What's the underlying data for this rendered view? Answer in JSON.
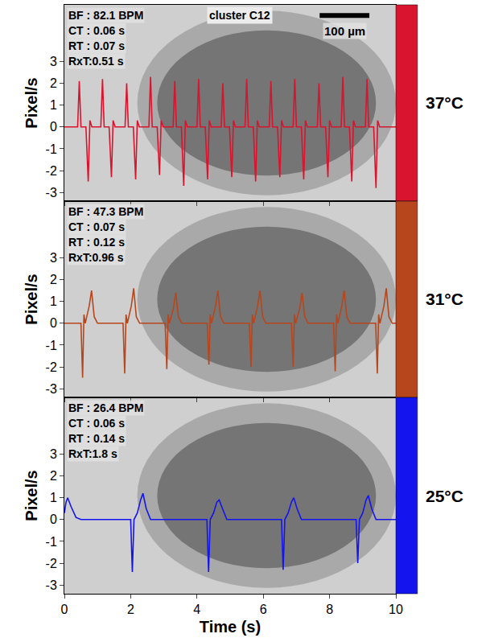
{
  "chart_data": {
    "type": "line",
    "xlabel": "Time (s)",
    "ylabel": "Pixel/s",
    "xlim": [
      0,
      10
    ],
    "xticks": [
      0,
      2,
      4,
      6,
      8,
      10
    ],
    "ylim": [
      -3.4,
      5.6
    ],
    "yticks": [
      -3,
      -2,
      -1,
      0,
      1,
      2,
      3
    ],
    "grid": false,
    "annotations": [
      "cluster C12",
      "100 µm"
    ],
    "series": [
      {
        "name": "37°C",
        "color": "#d9142e",
        "annotations": [
          "BF : 82.1 BPM",
          "CT : 0.06 s",
          "RT : 0.07 s",
          "RxT:0.51 s"
        ],
        "x": [
          0,
          0.4,
          0.45,
          0.5,
          0.65,
          0.72,
          0.77,
          0.83,
          1.1,
          1.15,
          1.2,
          1.35,
          1.42,
          1.47,
          1.53,
          1.83,
          1.88,
          1.93,
          2.08,
          2.15,
          2.2,
          2.26,
          2.55,
          2.6,
          2.65,
          2.8,
          2.87,
          2.92,
          2.98,
          3.28,
          3.33,
          3.38,
          3.53,
          3.6,
          3.65,
          3.71,
          4.0,
          4.05,
          4.1,
          4.25,
          4.32,
          4.37,
          4.43,
          4.73,
          4.78,
          4.83,
          4.98,
          5.05,
          5.1,
          5.16,
          5.45,
          5.5,
          5.55,
          5.7,
          5.77,
          5.82,
          5.88,
          6.18,
          6.23,
          6.28,
          6.43,
          6.5,
          6.55,
          6.61,
          6.9,
          6.95,
          7.0,
          7.15,
          7.22,
          7.27,
          7.33,
          7.63,
          7.68,
          7.73,
          7.88,
          7.95,
          8.0,
          8.06,
          8.35,
          8.4,
          8.45,
          8.6,
          8.67,
          8.72,
          8.78,
          9.08,
          9.13,
          9.18,
          9.33,
          9.4,
          9.45,
          9.51,
          10
        ],
        "values": [
          0,
          0,
          2.1,
          0,
          0,
          -2.5,
          0.3,
          0,
          0,
          2.2,
          0,
          0,
          -2.3,
          0.3,
          0,
          0,
          2.0,
          0,
          0,
          -2.4,
          0.3,
          0,
          0,
          2.3,
          0,
          0,
          -2.2,
          0.3,
          0,
          0,
          2.1,
          0,
          0,
          -2.7,
          0.3,
          0,
          0,
          2.2,
          0,
          0,
          -2.4,
          0.3,
          0,
          0,
          2.0,
          0,
          0,
          -2.3,
          0.3,
          0,
          0,
          2.2,
          0,
          0,
          -2.5,
          0.3,
          0,
          0,
          2.1,
          0,
          0,
          -2.3,
          0.3,
          0,
          0,
          2.2,
          0,
          0,
          -2.4,
          0.3,
          0,
          0,
          2.0,
          0,
          0,
          -2.3,
          0.3,
          0,
          0,
          2.3,
          0,
          0,
          -2.5,
          0.3,
          0,
          0,
          2.2,
          0,
          0,
          -2.8,
          0.3,
          0,
          0
        ]
      },
      {
        "name": "31°C",
        "color": "#b8461c",
        "annotations": [
          "BF : 47.3 BPM",
          "CT : 0.07 s",
          "RT : 0.12 s",
          "RxT:0.96 s"
        ],
        "x": [
          0,
          0.5,
          0.55,
          0.59,
          0.63,
          0.75,
          0.82,
          0.9,
          1.0,
          1.77,
          1.82,
          1.86,
          1.9,
          2.02,
          2.09,
          2.17,
          2.27,
          3.04,
          3.09,
          3.13,
          3.17,
          3.29,
          3.36,
          3.44,
          3.54,
          4.31,
          4.36,
          4.4,
          4.44,
          4.56,
          4.63,
          4.71,
          4.81,
          5.58,
          5.63,
          5.67,
          5.71,
          5.83,
          5.9,
          5.98,
          6.08,
          6.85,
          6.9,
          6.94,
          6.98,
          7.1,
          7.17,
          7.25,
          7.35,
          8.12,
          8.17,
          8.21,
          8.25,
          8.37,
          8.44,
          8.52,
          8.62,
          9.39,
          9.44,
          9.48,
          9.52,
          9.64,
          9.71,
          9.79,
          9.89,
          10
        ],
        "values": [
          0,
          0,
          -2.5,
          0.4,
          0,
          0.8,
          1.5,
          0.3,
          0,
          0,
          -2.3,
          0.4,
          0,
          0.8,
          1.6,
          0.3,
          0,
          0,
          -2.1,
          0.4,
          0,
          0.7,
          1.4,
          0.3,
          0,
          0,
          -1.9,
          0.4,
          0,
          0.8,
          1.5,
          0.3,
          0,
          0,
          -2.0,
          0.4,
          0,
          0.8,
          1.5,
          0.3,
          0,
          0,
          -2.0,
          0.4,
          0,
          0.7,
          1.4,
          0.3,
          0,
          0,
          -2.2,
          0.4,
          0,
          0.8,
          1.5,
          0.3,
          0,
          0,
          -2.3,
          0.4,
          0,
          0.8,
          1.6,
          0.3,
          0,
          0
        ]
      },
      {
        "name": "25°C",
        "color": "#1414ee",
        "annotations": [
          "BF : 26.4 BPM",
          "CT : 0.06 s",
          "RT : 0.14 s",
          "RxT:1.8 s"
        ],
        "x": [
          0,
          0.05,
          0.1,
          0.2,
          0.35,
          0.5,
          2.0,
          2.05,
          2.1,
          2.2,
          2.3,
          2.37,
          2.47,
          2.6,
          4.3,
          4.35,
          4.4,
          4.5,
          4.6,
          4.67,
          4.77,
          4.9,
          6.55,
          6.6,
          6.65,
          6.75,
          6.85,
          6.92,
          7.02,
          7.15,
          8.8,
          8.85,
          8.9,
          9.0,
          9.1,
          9.17,
          9.27,
          9.4,
          10
        ],
        "values": [
          0.3,
          0.8,
          1.0,
          0.6,
          0.1,
          0,
          0,
          -2.4,
          0,
          0.3,
          0.9,
          1.2,
          0.5,
          0,
          0,
          -2.4,
          0,
          0.3,
          0.8,
          0.9,
          0.5,
          0,
          0,
          -2.3,
          0,
          0.3,
          0.8,
          1.0,
          0.5,
          0,
          0,
          -2.0,
          0,
          0.3,
          0.9,
          1.1,
          0.5,
          0,
          0
        ]
      }
    ]
  }
}
